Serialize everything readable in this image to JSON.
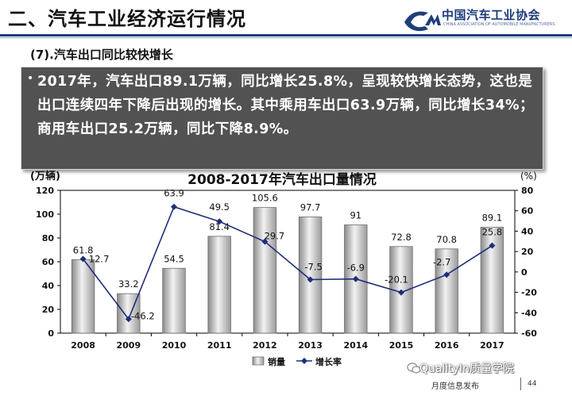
{
  "header": {
    "title": "二、汽车工业经济运行情况",
    "org_name": "中国汽车工业协会",
    "org_subtitle": "CHINA ASSOCIATION OF AUTOMOBILE MANUFACTURERS",
    "accent_color": "#1f3d7a"
  },
  "section": {
    "title": "(7).汽车出口同比较快增长",
    "bullet": "•",
    "summary": "2017年，汽车出口89.1万辆，同比增长25.8%，呈现较快增长态势，这也是出口连续四年下降后出现的增长。其中乘用车出口63.9万辆，同比增长34%；商用车出口25.2万辆，同比下降8.9%。"
  },
  "chart_data": {
    "type": "bar+line",
    "title": "2008-2017年汽车出口量情况",
    "categories": [
      "2008",
      "2009",
      "2010",
      "2011",
      "2012",
      "2013",
      "2014",
      "2015",
      "2016",
      "2017"
    ],
    "left_axis_label": "(万辆)",
    "right_axis_label": "(%)",
    "left_ylim": [
      0,
      120
    ],
    "left_ticks": [
      "0",
      "20",
      "40",
      "60",
      "80",
      "100",
      "120"
    ],
    "right_ylim": [
      -60,
      80
    ],
    "right_ticks": [
      "-60",
      "-40",
      "-20",
      "0",
      "20",
      "40",
      "60",
      "80"
    ],
    "series": [
      {
        "name": "销量",
        "type": "bar",
        "axis": "left",
        "values": [
          61.8,
          33.2,
          54.5,
          81.4,
          105.6,
          97.7,
          91,
          72.8,
          70.8,
          89.1
        ],
        "labels": [
          "61.8",
          "33.2",
          "54.5",
          "81.4",
          "105.6",
          "97.7",
          "91",
          "72.8",
          "70.8",
          "89.1"
        ]
      },
      {
        "name": "增长率",
        "type": "line",
        "axis": "right",
        "values": [
          12.7,
          -46.2,
          63.9,
          49.5,
          29.7,
          -7.5,
          -6.9,
          -20.1,
          -2.7,
          25.8
        ],
        "labels": [
          "12.7",
          "-46.2",
          "63.9",
          "49.5",
          "29.7",
          "-7.5",
          "-6.9",
          "-20.1",
          "-2.7",
          "25.8"
        ]
      }
    ],
    "legend": [
      "销量",
      "增长率"
    ],
    "legend_position": "bottom-center",
    "bar_color": "#c4c4c4",
    "line_color": "#1f2e7a"
  },
  "watermark": {
    "text": "QualityIn质量学院"
  },
  "footer": {
    "text": "月度信息发布",
    "page_number": "44"
  }
}
